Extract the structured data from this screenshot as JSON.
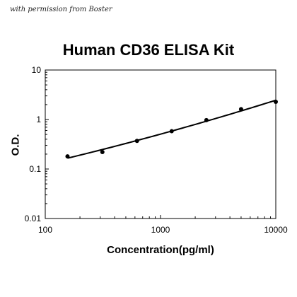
{
  "watermark": "with permission from Boster",
  "chart_data": {
    "type": "scatter",
    "title": "Human CD36 ELISA Kit",
    "xlabel": "Concentration(pg/ml)",
    "ylabel": "O.D.",
    "xscale": "log",
    "yscale": "log",
    "xlim": [
      100,
      10000
    ],
    "ylim": [
      0.01,
      10
    ],
    "xticks": [
      "100",
      "1000",
      "10000"
    ],
    "yticks": [
      "0.01",
      "0.1",
      "1",
      "10"
    ],
    "grid": false,
    "legend": "none",
    "series": [
      {
        "x": [
          156,
          313,
          625,
          1250,
          2500,
          5000,
          10000
        ],
        "y": [
          0.18,
          0.22,
          0.37,
          0.58,
          0.97,
          1.62,
          2.28
        ],
        "marker": "circle",
        "fit_line": true
      }
    ]
  }
}
